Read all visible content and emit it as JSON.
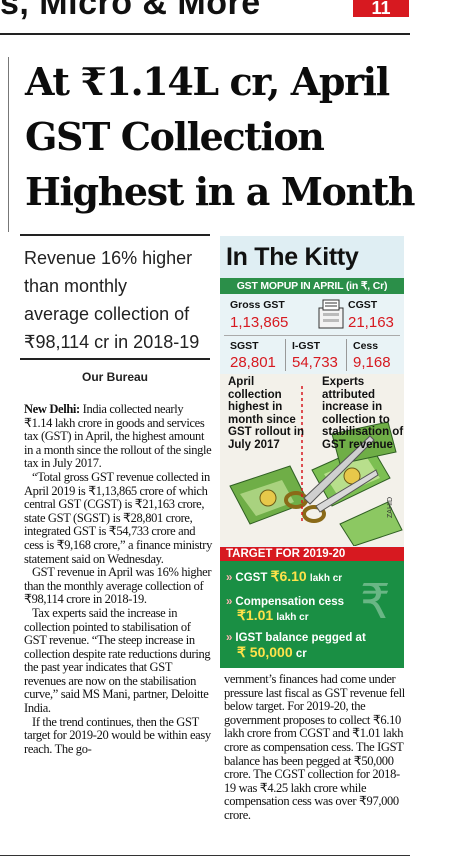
{
  "masthead": {
    "partial_text": "s, Micro & More",
    "page_badge": "11"
  },
  "headline": {
    "line1": "At ₹1.14L cr, April",
    "line2": "GST Collection",
    "line3": "Highest in a Month"
  },
  "deck": {
    "line1": "Revenue 16% higher",
    "line2": "than monthly",
    "line3": "average collection of",
    "line4": "₹98,114 cr in 2018-19"
  },
  "byline": "Our Bureau",
  "article": {
    "dateline": "New Delhi:",
    "p1": " India collected nearly ₹1.14 lakh crore in goods and services tax (GST) in April, the highest amount in a month since the rollout of the single tax in July 2017.",
    "p2": "“Total gross GST revenue collected in April 2019 is ₹1,13,865 crore of which central GST (CGST) is ₹21,163 crore, state GST (SGST) is ₹28,801 crore, integrated GST is ₹54,733 crore and cess is ₹9,168 crore,” a finance ministry statement said on Wednesday.",
    "p3": "GST revenue in April was 16% higher than the monthly average collection of ₹98,114 crore in 2018-19.",
    "p4": "Tax experts said the increase in collection pointed to stabilisation of GST revenue. “The steep increase in collection despite rate reductions during the past year indicates that GST revenues are now on the stabilisation curve,” said MS Mani, partner, Deloitte India.",
    "p5": "If the trend continues, then the GST target for 2019-20 would be within easy reach. The go-",
    "p6": "vernment’s finances had come under pressure last fiscal as GST revenue fell below target. For 2019-20, the government proposes to collect ₹6.10 lakh crore from CGST and ₹1.01 lakh crore as compensation cess. The IGST balance has been pegged at ₹50,000 crore. The CGST collection for 2018-19 was ₹4.25 lakh crore while compensation cess was over ₹97,000 crore."
  },
  "infobox": {
    "title": "In The Kitty",
    "subtitle": "GST MOPUP IN APRIL (in ₹, Cr)",
    "stats": [
      {
        "label": "Gross GST",
        "value": "1,13,865"
      },
      {
        "label": "CGST",
        "value": "21,163"
      },
      {
        "label": "SGST",
        "value": "28,801"
      },
      {
        "label": "I-GST",
        "value": "54,733"
      },
      {
        "label": "Cess",
        "value": "9,168"
      }
    ],
    "note_left": "April collection highest in month since GST rollout in July 2017",
    "note_right": "Experts attributed increase in collection to stabilisation of GST revenue",
    "credit": "ZAHID",
    "target_title": "TARGET FOR 2019-20",
    "targets": [
      {
        "label": "CGST",
        "amount": "₹6.10",
        "unit": "lakh cr"
      },
      {
        "label": "Compensation cess",
        "amount": "₹1.01",
        "unit": "lakh cr"
      },
      {
        "label": "IGST balance pegged at",
        "amount": "₹ 50,000",
        "unit": "cr"
      }
    ]
  },
  "colors": {
    "accent_red": "#d71920",
    "accent_green": "#1a8f44",
    "highlight_yellow": "#ffe24a"
  }
}
